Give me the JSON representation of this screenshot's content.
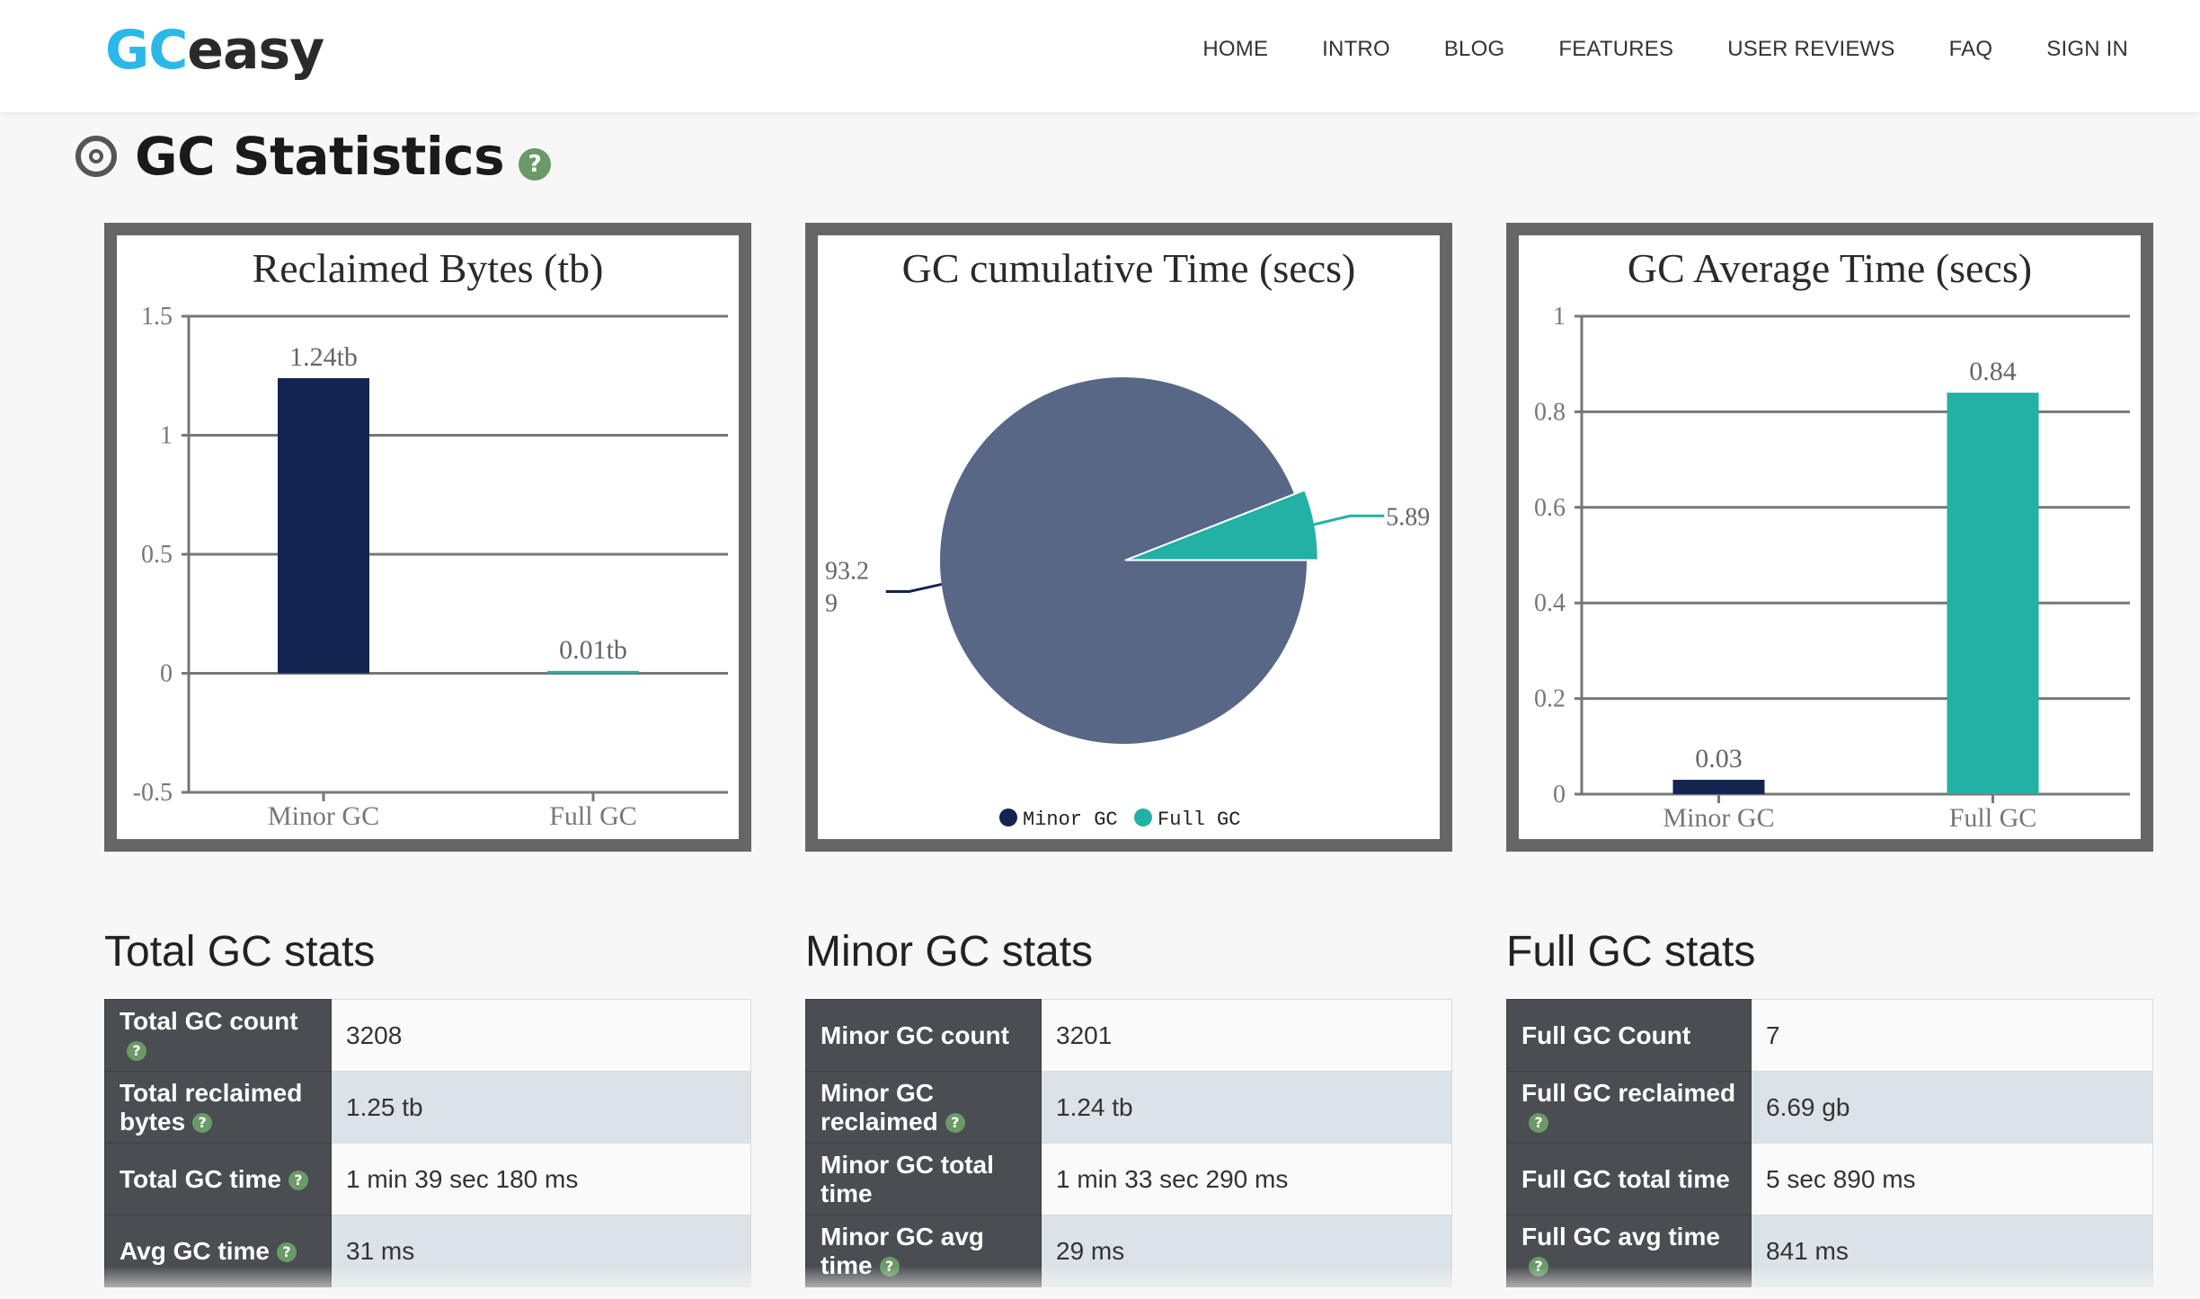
{
  "nav": {
    "logo_gc": "GC",
    "logo_easy": "easy",
    "links": [
      "HOME",
      "INTRO",
      "BLOG",
      "FEATURES",
      "USER REVIEWS",
      "FAQ",
      "SIGN IN"
    ]
  },
  "section": {
    "title": "GC Statistics",
    "help": "?"
  },
  "colors": {
    "minor": "#132451",
    "full": "#22b1a4",
    "pie_minor": "#576785",
    "panel_border": "#666666",
    "help": "#6a9a67"
  },
  "chart_data": [
    {
      "type": "bar",
      "title": "Reclaimed Bytes (tb)",
      "categories": [
        "Minor GC",
        "Full GC"
      ],
      "values": [
        1.24,
        0.01
      ],
      "data_labels": [
        "1.24tb",
        "0.01tb"
      ],
      "ylim": [
        -0.5,
        1.5
      ],
      "yticks": [
        -0.5,
        0,
        0.5,
        1,
        1.5
      ],
      "ytick_labels": [
        "-0.5",
        "0",
        "0.5",
        "1",
        "1.5"
      ],
      "grid": true
    },
    {
      "type": "pie",
      "title": "GC cumulative Time (secs)",
      "labels": [
        "Minor GC",
        "Full GC"
      ],
      "values": [
        93.29,
        5.89
      ],
      "data_labels": [
        "93.2\n9",
        "5.89"
      ],
      "legend": [
        "Minor GC",
        "Full GC"
      ],
      "legend_position": "bottom"
    },
    {
      "type": "bar",
      "title": "GC Average Time (secs)",
      "categories": [
        "Minor GC",
        "Full GC"
      ],
      "values": [
        0.03,
        0.84
      ],
      "data_labels": [
        "0.03",
        "0.84"
      ],
      "ylim": [
        0,
        1
      ],
      "yticks": [
        0,
        0.2,
        0.4,
        0.6,
        0.8,
        1
      ],
      "ytick_labels": [
        "0",
        "0.2",
        "0.4",
        "0.6",
        "0.8",
        "1"
      ],
      "grid": true
    }
  ],
  "total_stats": {
    "heading": "Total GC stats",
    "rows": [
      {
        "label": "Total GC count",
        "value": "3208",
        "help": true
      },
      {
        "label": "Total reclaimed bytes",
        "value": "1.25 tb",
        "help": true
      },
      {
        "label": "Total GC time",
        "value": "1 min 39 sec 180 ms",
        "help": true
      },
      {
        "label": "Avg GC time",
        "value": "31 ms",
        "help": true
      }
    ]
  },
  "minor_stats": {
    "heading": "Minor GC stats",
    "rows": [
      {
        "label": "Minor GC count",
        "value": "3201",
        "help": false
      },
      {
        "label": "Minor GC reclaimed",
        "value": "1.24 tb",
        "help": true
      },
      {
        "label": "Minor GC total time",
        "value": "1 min 33 sec 290 ms",
        "help": false
      },
      {
        "label": "Minor GC avg time",
        "value": "29 ms",
        "help": true
      }
    ]
  },
  "full_stats": {
    "heading": "Full GC stats",
    "rows": [
      {
        "label": "Full GC Count",
        "value": "7",
        "help": false
      },
      {
        "label": "Full GC reclaimed",
        "value": "6.69 gb",
        "help": true
      },
      {
        "label": "Full GC total time",
        "value": "5 sec 890 ms",
        "help": false
      },
      {
        "label": "Full GC avg time",
        "value": "841 ms",
        "help": true
      }
    ]
  }
}
